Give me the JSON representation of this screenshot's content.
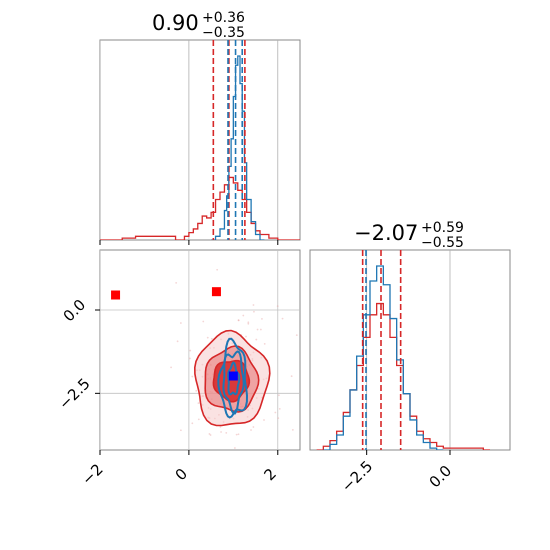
{
  "chart_data": [
    {
      "type": "histogram",
      "panel": "marginal-param-1",
      "title": {
        "median": "0.90",
        "plus": "+0.36",
        "minus": "−0.35"
      },
      "xlim": [
        -2.0,
        2.5
      ],
      "xticks": [
        -2,
        0,
        2
      ],
      "grid": true,
      "series": [
        {
          "color": "#d62728",
          "x": [
            -2.0,
            -1.5,
            -1.2,
            -0.3,
            -0.1,
            0.0,
            0.1,
            0.2,
            0.3,
            0.4,
            0.5,
            0.6,
            0.7,
            0.8,
            0.9,
            1.0,
            1.1,
            1.2,
            1.3,
            1.4,
            1.5,
            1.6,
            1.8,
            2.0
          ],
          "y": [
            0.0,
            0.01,
            0.02,
            0.0,
            0.02,
            0.04,
            0.06,
            0.09,
            0.13,
            0.12,
            0.15,
            0.22,
            0.26,
            0.3,
            0.34,
            0.31,
            0.27,
            0.22,
            0.15,
            0.09,
            0.05,
            0.03,
            0.01,
            0.0
          ]
        },
        {
          "color": "#1f77b4",
          "x": [
            0.5,
            0.6,
            0.7,
            0.8,
            0.85,
            0.9,
            0.95,
            1.0,
            1.05,
            1.1,
            1.15,
            1.2,
            1.25,
            1.3,
            1.4,
            1.5,
            1.6
          ],
          "y": [
            0.0,
            0.02,
            0.06,
            0.16,
            0.24,
            0.4,
            0.55,
            0.78,
            0.95,
            1.0,
            0.85,
            0.7,
            0.42,
            0.22,
            0.1,
            0.03,
            0.0
          ]
        }
      ],
      "quantile_lines": [
        {
          "color": "#d62728",
          "values": [
            0.55,
            0.9,
            1.26
          ]
        },
        {
          "color": "#1f77b4",
          "values": [
            0.88,
            1.05,
            1.2
          ]
        }
      ]
    },
    {
      "type": "histogram",
      "panel": "marginal-param-2",
      "title": {
        "median": "−2.07",
        "plus": "+0.59",
        "minus": "−0.55"
      },
      "xlim": [
        -4.2,
        1.8
      ],
      "xticks": [
        -2.5,
        0.0
      ],
      "xticklabels": [
        "−2.5",
        "0.0"
      ],
      "grid": true,
      "series": [
        {
          "color": "#d62728",
          "x": [
            -4.0,
            -3.8,
            -3.6,
            -3.4,
            -3.2,
            -3.0,
            -2.8,
            -2.6,
            -2.4,
            -2.2,
            -2.0,
            -1.8,
            -1.6,
            -1.4,
            -1.2,
            -1.0,
            -0.8,
            -0.6,
            -0.4,
            -0.2,
            0.0,
            0.5,
            1.0
          ],
          "y": [
            0.0,
            0.02,
            0.05,
            0.1,
            0.2,
            0.32,
            0.45,
            0.6,
            0.72,
            0.78,
            0.72,
            0.6,
            0.45,
            0.3,
            0.18,
            0.1,
            0.06,
            0.04,
            0.02,
            0.01,
            0.01,
            0.01,
            0.0
          ]
        },
        {
          "color": "#1f77b4",
          "x": [
            -3.8,
            -3.6,
            -3.4,
            -3.2,
            -3.0,
            -2.8,
            -2.6,
            -2.4,
            -2.2,
            -2.0,
            -1.8,
            -1.6,
            -1.4,
            -1.2,
            -1.0,
            -0.8,
            -0.6,
            -0.4
          ],
          "y": [
            0.0,
            0.03,
            0.08,
            0.18,
            0.32,
            0.5,
            0.72,
            0.9,
            0.98,
            0.88,
            0.7,
            0.48,
            0.3,
            0.16,
            0.08,
            0.04,
            0.01,
            0.0
          ]
        }
      ],
      "quantile_lines": [
        {
          "color": "#d62728",
          "values": [
            -2.62,
            -2.07,
            -1.48
          ]
        },
        {
          "color": "#1f77b4",
          "values": [
            -2.52
          ]
        }
      ]
    },
    {
      "type": "contour",
      "panel": "joint-param-1-param-2",
      "xlim": [
        -2.0,
        2.5
      ],
      "ylim": [
        -4.2,
        1.8
      ],
      "xticks": [
        -2,
        0,
        2
      ],
      "xticklabels": [
        "−2",
        "0",
        "2"
      ],
      "yticks": [
        0.0,
        -2.5
      ],
      "yticklabels": [
        "0.0",
        "−2.5"
      ],
      "grid": true,
      "red_contours": {
        "center": [
          0.95,
          -2.1
        ],
        "levels": [
          {
            "rx": 0.4,
            "ry": 0.6,
            "fill": "#d62728",
            "opacity": 0.85
          },
          {
            "rx": 0.6,
            "ry": 0.95,
            "fill": "#e8797a",
            "opacity": 0.6
          },
          {
            "rx": 0.82,
            "ry": 1.4,
            "fill": "#f6c6c6",
            "opacity": 0.5
          }
        ]
      },
      "blue_contours": {
        "center": [
          1.0,
          -2.1
        ],
        "levels": [
          {
            "rx": 0.12,
            "ry": 0.45
          },
          {
            "rx": 0.22,
            "ry": 0.85
          },
          {
            "rx": 0.3,
            "ry": 1.1
          }
        ]
      },
      "markers": [
        {
          "x": -1.65,
          "y": 0.45,
          "color": "#ff0000"
        },
        {
          "x": 0.62,
          "y": 0.55,
          "color": "#ff0000"
        },
        {
          "x": 1.0,
          "y": -1.98,
          "color": "#0000ff"
        }
      ]
    }
  ]
}
